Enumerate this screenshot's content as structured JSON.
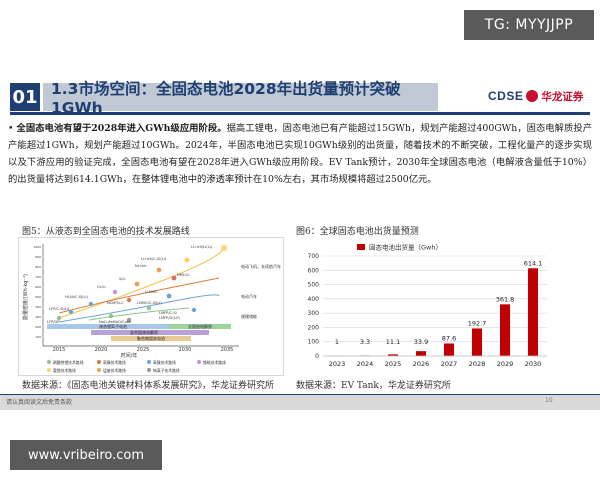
{
  "watermark_top": "TG: MYYJJPP",
  "watermark_bottom": "www.vribeiro.com",
  "header": {
    "section_number": "01",
    "title": "1.3市场空间：全固态电池2028年出货量预计突破1GWh",
    "logo_text": "CDSE",
    "logo_cn": "华龙证券"
  },
  "body": {
    "lead": "全固态电池有望于2028年进入GWh级应用阶段。",
    "text": "据高工锂电，固态电池已有产能超过15GWh，规划产能超过400GWh，固态电解质投产产能超过1GWh，规划产能超过10GWh。2024年，半固态电池已实现10GWh级别的出货量，随着技术的不断突破，工程化量产的逐步实现以及下游应用的验证完成，全固态电池有望在2028年进入GWh级应用阶段。EV Tank预计，2030年全球固态电池（电解液含量低于10%）的出货量将达到614.1GWh，在整体锂电池中的渗透率预计在10%左右，其市场规模将超过2500亿元。"
  },
  "left_figure": {
    "title": "图5：从液态到全固态电池的技术发展路线",
    "source": "数据来源：《固态电池关键材料体系发展研究》，华龙证券研究所",
    "y_axis_label": "能量密度/(Wh·kg⁻¹)",
    "x_axis_label": "时间/年",
    "year_ticks": [
      "2015",
      "2020",
      "2025",
      "2030",
      "2035"
    ],
    "y_ticks": [
      "1000",
      "900",
      "800",
      "700",
      "600",
      "500",
      "400",
      "300",
      "200",
      "100"
    ],
    "point_labels": [
      "Li-rich/Li(Li)",
      "Li-rich/C-Si(Li)",
      "Ni-rich",
      "NMC/Li",
      "S/Li",
      "O₂/Li",
      "Li-NMC",
      "HI-Ni/C-Si(Li)",
      "NCM/Si-C",
      "LNMO/C-Si(Li)",
      "LFP/C-Si(Li)",
      "LMFP/C-Si",
      "LMFP/G(LO)",
      "LFP/GP",
      "NaCuFeMnO/Coke"
    ],
    "side_labels": [
      "电动飞机，长续航汽车",
      "电动汽车",
      "规模储能"
    ],
    "bars": [
      "液态锂离子电池",
      "混合固液电解质",
      "全固态电解质",
      "聚合物固态电池"
    ],
    "legend": [
      "磷酸铁锂技术路线",
      "高镍技术路线",
      "高镍技术路线",
      "锂硫技术路线",
      "富锂技术路线",
      "锰基技术路线",
      "钠离子技术路线"
    ]
  },
  "right_figure": {
    "title": "图6：全球固态电池出货量预测",
    "source": "数据来源：EV Tank，华龙证券研究所"
  },
  "chart_data": {
    "type": "bar",
    "title": "",
    "legend": "固态电池出货量（Gwh）",
    "categories": [
      "2023",
      "2024",
      "2025",
      "2026",
      "2027",
      "2028",
      "2029",
      "2030"
    ],
    "values": [
      1,
      3.3,
      11.1,
      33.9,
      87.6,
      192.7,
      361.8,
      614.1
    ],
    "value_labels": [
      "1",
      "3.3",
      "11.1",
      "33.9",
      "87.6",
      "192.7",
      "361.8",
      "614.1"
    ],
    "y_ticks": [
      0,
      100,
      200,
      300,
      400,
      500,
      600,
      700
    ],
    "ylim": [
      0,
      700
    ],
    "bar_color": "#c00000",
    "grid": true,
    "legend_position": "top-left"
  },
  "footer": {
    "disclaimer": "请认真阅读文后免责条款",
    "page": "10"
  }
}
